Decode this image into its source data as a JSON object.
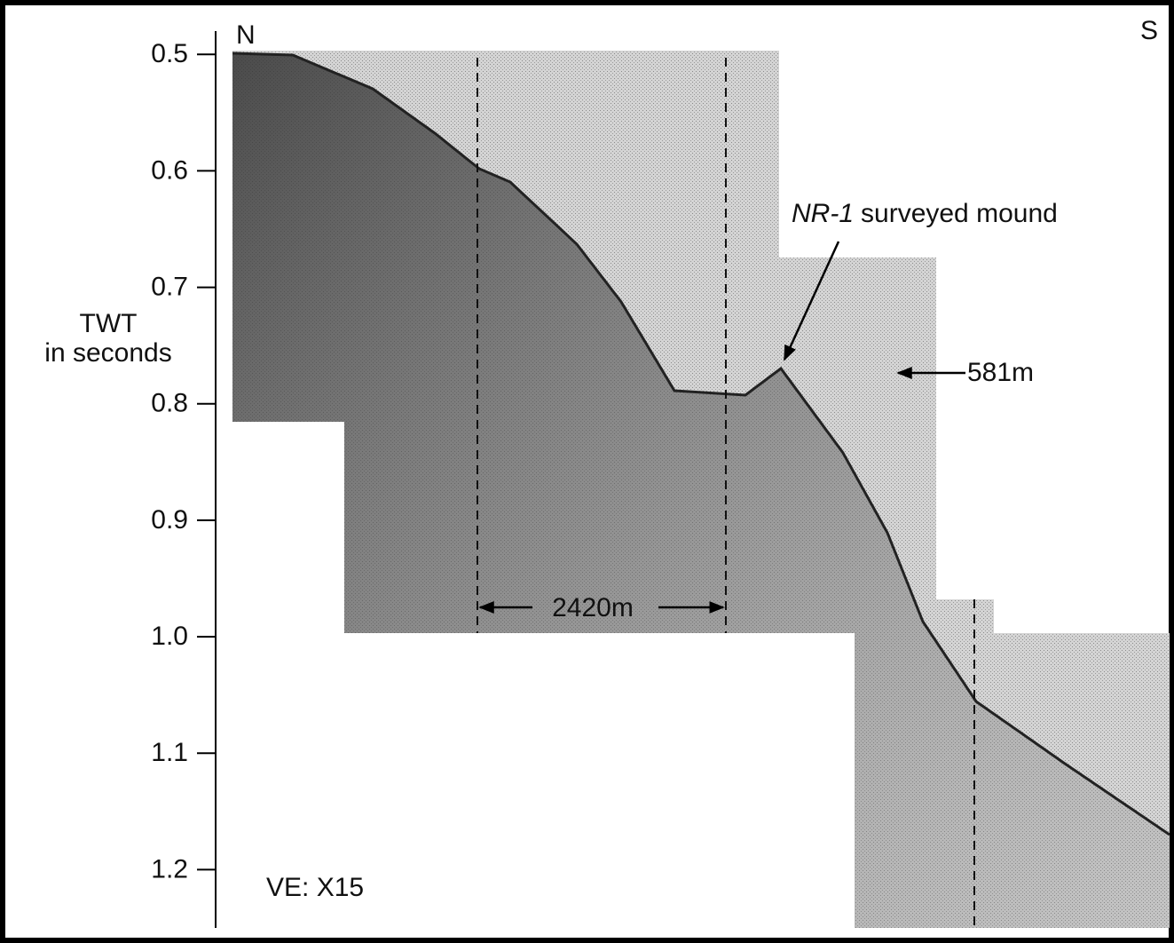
{
  "chart_data": {
    "type": "seismic-profile",
    "ylabel": [
      "TWT",
      "in seconds"
    ],
    "ylim": [
      0.48,
      1.25
    ],
    "yticks": [
      0.5,
      0.6,
      0.7,
      0.8,
      0.9,
      {
        "value": 1,
        "label": "1.0"
      },
      1.1,
      1.2
    ],
    "left_direction": "N",
    "right_direction": "S",
    "mound_label": [
      "NR-1",
      "surveyed mound"
    ],
    "height_label": "581m",
    "width_label": "2420m",
    "exaggeration": "VE: X15"
  }
}
